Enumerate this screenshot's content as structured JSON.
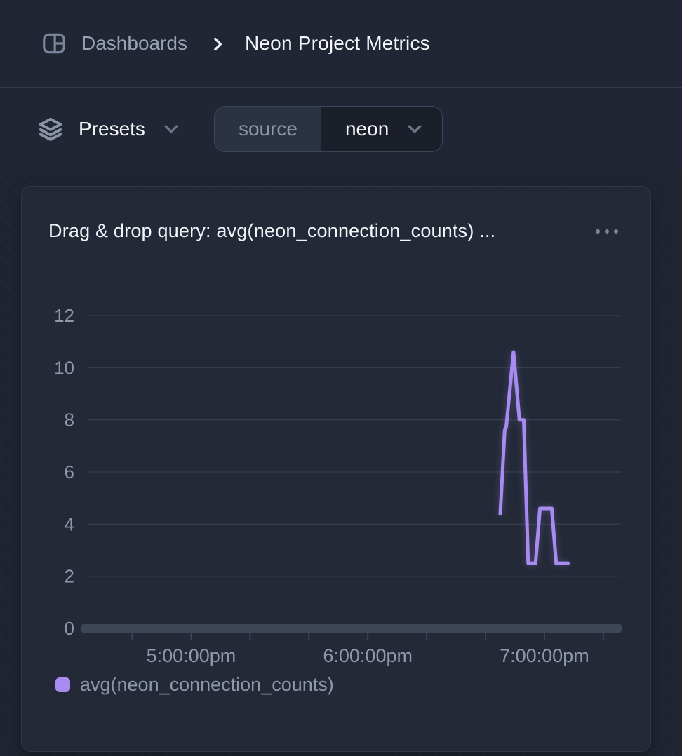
{
  "header": {
    "breadcrumb_root": "Dashboards",
    "page_title": "Neon Project Metrics"
  },
  "toolbar": {
    "presets_label": "Presets",
    "source_filter": {
      "key_label": "source",
      "value": "neon"
    }
  },
  "card": {
    "title": "Drag & drop query: avg(neon_connection_counts) ..."
  },
  "legend": {
    "label": "avg(neon_connection_counts)",
    "color": "#a78bf0"
  },
  "colors": {
    "accent_purple": "#a78bf0",
    "background": "#212634",
    "card_background": "#232937",
    "muted_text": "#8f97ab",
    "grid_line": "#333b4c"
  },
  "chart_data": {
    "type": "line",
    "title": "Drag & drop query: avg(neon_connection_counts) ...",
    "grid": true,
    "legend_position": "bottom",
    "y_axis": {
      "min": 0,
      "max": 12,
      "tick_step": 2,
      "tick_labels": [
        "0",
        "2",
        "4",
        "6",
        "8",
        "10",
        "12"
      ]
    },
    "x_axis": {
      "unit": "minutes_after_4pm",
      "start_minutes": 22,
      "end_minutes": 206,
      "tick_minutes": [
        40,
        60,
        80,
        100,
        120,
        140,
        160,
        180,
        200
      ],
      "labeled_ticks": [
        {
          "minutes": 60,
          "label": "5:00:00pm"
        },
        {
          "minutes": 120,
          "label": "6:00:00pm"
        },
        {
          "minutes": 180,
          "label": "7:00:00pm"
        }
      ]
    },
    "series": [
      {
        "name": "avg(neon_connection_counts)",
        "color": "#a78bf0",
        "points": [
          {
            "time": "6:45:00pm",
            "minutes_after_4pm": 165,
            "value": 4.4
          },
          {
            "time": "6:46:30pm",
            "minutes_after_4pm": 166.5,
            "value": 7.6
          },
          {
            "time": "6:47:00pm",
            "minutes_after_4pm": 167,
            "value": 7.7
          },
          {
            "time": "6:49:30pm",
            "minutes_after_4pm": 169.5,
            "value": 10.6
          },
          {
            "time": "6:51:30pm",
            "minutes_after_4pm": 171.5,
            "value": 8.0
          },
          {
            "time": "6:53:00pm",
            "minutes_after_4pm": 173,
            "value": 8.0
          },
          {
            "time": "6:54:30pm",
            "minutes_after_4pm": 174.5,
            "value": 2.5
          },
          {
            "time": "6:57:00pm",
            "minutes_after_4pm": 177,
            "value": 2.5
          },
          {
            "time": "6:58:30pm",
            "minutes_after_4pm": 178.5,
            "value": 4.6
          },
          {
            "time": "7:02:30pm",
            "minutes_after_4pm": 182.5,
            "value": 4.6
          },
          {
            "time": "7:04:00pm",
            "minutes_after_4pm": 184,
            "value": 2.5
          },
          {
            "time": "7:08:00pm",
            "minutes_after_4pm": 188,
            "value": 2.5
          }
        ]
      }
    ]
  }
}
